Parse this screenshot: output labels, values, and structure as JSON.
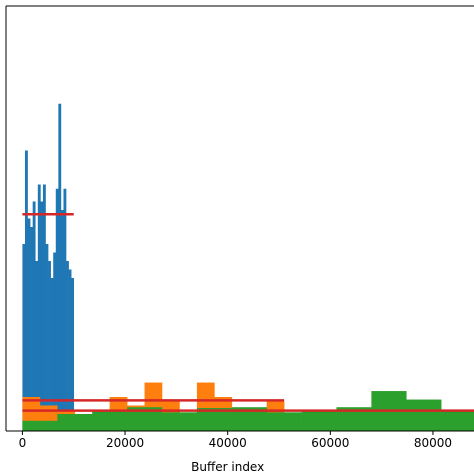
{
  "chart_data": {
    "type": "bar",
    "xlabel": "Buffer index",
    "ylabel": "",
    "title": "",
    "xlim": [
      -3200,
      88000
    ],
    "ylim": [
      0,
      500
    ],
    "x_ticks": [
      0,
      20000,
      40000,
      60000,
      80000
    ],
    "x_tick_labels": [
      "0",
      "20000",
      "40000",
      "60000",
      "80000"
    ],
    "grid": false,
    "colors": {
      "blue": "#1f77b4",
      "orange": "#ff7f0e",
      "green": "#2ca02c",
      "mean_line": "#d62728"
    },
    "series": [
      {
        "color": "#1f77b4",
        "bin_edges": [
          0,
          500,
          1000,
          1500,
          2000,
          2500,
          3000,
          3500,
          4000,
          4500,
          5000,
          5500,
          6000,
          6500,
          7000,
          7500,
          8000,
          8500,
          9000,
          9500,
          10000
        ],
        "values": [
          220,
          330,
          250,
          240,
          270,
          200,
          290,
          270,
          290,
          220,
          200,
          180,
          210,
          285,
          385,
          260,
          285,
          200,
          190,
          180
        ],
        "mean": 255
      },
      {
        "color": "#ff7f0e",
        "bin_edges": [
          0,
          3400,
          6800,
          10200,
          13600,
          17000,
          20400,
          23800,
          27200,
          30600,
          34000,
          37400,
          40800,
          44200,
          47600,
          51000
        ],
        "values": [
          40,
          30,
          25,
          15,
          10,
          40,
          30,
          57,
          37,
          20,
          57,
          40,
          25,
          10,
          35
        ],
        "mean": 36
      },
      {
        "color": "#2ca02c",
        "bin_edges": [
          0,
          6800,
          13600,
          20400,
          27200,
          34000,
          40800,
          47600,
          54400,
          61200,
          68000,
          74800,
          81600,
          88000
        ],
        "values": [
          12,
          20,
          25,
          28,
          22,
          27,
          28,
          22,
          24,
          28,
          47,
          37,
          24
        ],
        "mean": 24
      }
    ]
  }
}
